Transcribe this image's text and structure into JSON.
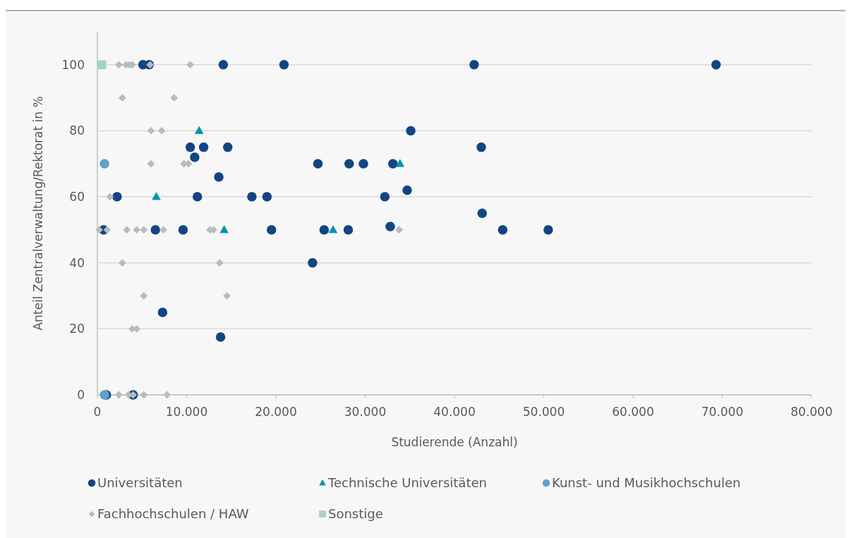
{
  "chart_data": {
    "type": "scatter",
    "xlabel": "Studierende (Anzahl)",
    "ylabel": "Anteil Zentralverwaltung/Rektorat in %",
    "xlim": [
      0,
      80000
    ],
    "xticks": [
      {
        "value": 0,
        "label": "0"
      },
      {
        "value": 10000,
        "label": "10.000"
      },
      {
        "value": 20000,
        "label": "20.000"
      },
      {
        "value": 30000,
        "label": "30.000"
      },
      {
        "value": 40000,
        "label": "40.000"
      },
      {
        "value": 50000,
        "label": "50.000"
      },
      {
        "value": 60000,
        "label": "60.000"
      },
      {
        "value": 70000,
        "label": "70.000"
      },
      {
        "value": 80000,
        "label": "80.000"
      }
    ],
    "ylim": [
      0,
      110
    ],
    "yticks": [
      0,
      20,
      40,
      60,
      80,
      100
    ],
    "grid": "y",
    "legend": "bottom",
    "series": [
      {
        "name": "Universitäten",
        "color": "#134582",
        "marker": "circle",
        "x": [
          5100,
          5800,
          14100,
          20900,
          42200,
          69300,
          35100,
          10400,
          11900,
          14600,
          43000,
          10900,
          13600,
          24700,
          28200,
          29800,
          33100,
          34700,
          2200,
          11200,
          17300,
          19000,
          32200,
          43100,
          700,
          6500,
          9600,
          19500,
          25400,
          28100,
          32800,
          45400,
          50500,
          7300,
          24100,
          13800,
          4000,
          1000
        ],
        "values": [
          100,
          100,
          100,
          100,
          100,
          100,
          80,
          75,
          75,
          75,
          75,
          72,
          66,
          70,
          70,
          70,
          70,
          62,
          60,
          60,
          60,
          60,
          60,
          55,
          50,
          50,
          50,
          50,
          50,
          50,
          51,
          50,
          50,
          25,
          40,
          17.5,
          0,
          0
        ]
      },
      {
        "name": "Technische Universitäten",
        "color": "#0095aa",
        "marker": "triangle",
        "x": [
          11400,
          6600,
          33900,
          14200,
          26400
        ],
        "values": [
          80,
          60,
          70,
          50,
          50
        ]
      },
      {
        "name": "Kunst- und Musikhochschulen",
        "color": "#61a1c8",
        "marker": "circle",
        "x": [
          800,
          800
        ],
        "values": [
          70,
          0
        ]
      },
      {
        "name": "Fachhochschulen / HAW",
        "color": "#b7bcbf",
        "marker": "diamond",
        "x": [
          2400,
          3200,
          3600,
          3900,
          5900,
          10400,
          2800,
          8600,
          6000,
          7200,
          6000,
          9700,
          10200,
          1400,
          200,
          1100,
          3300,
          4400,
          5200,
          7400,
          12600,
          13000,
          33800,
          2800,
          13700,
          5200,
          14500,
          3900,
          4400,
          2400,
          3500,
          4000,
          5200,
          7800
        ],
        "values": [
          100,
          100,
          100,
          100,
          100,
          100,
          90,
          90,
          80,
          80,
          70,
          70,
          70,
          60,
          50,
          50,
          50,
          50,
          50,
          50,
          50,
          50,
          50,
          40,
          40,
          30,
          30,
          20,
          20,
          0,
          0,
          0,
          0,
          0
        ]
      },
      {
        "name": "Sonstige",
        "color": "#a6d3c6",
        "marker": "square",
        "x": [
          500
        ],
        "values": [
          100
        ]
      }
    ]
  }
}
